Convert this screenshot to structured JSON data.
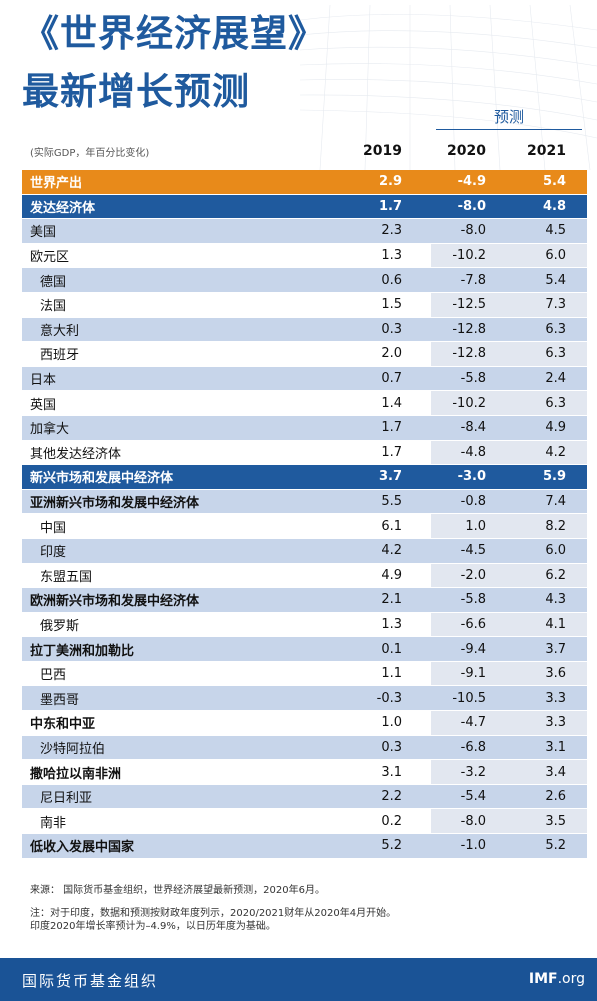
{
  "header": {
    "title_line1": "《世界经济展望》",
    "title_line2": "最新增长预测",
    "note": "(实际GDP，年百分比变化)",
    "forecast_label": "预测"
  },
  "chart_data": {
    "type": "table",
    "columns": [
      "2019",
      "2020",
      "2021"
    ],
    "rows": [
      {
        "label": "世界产出",
        "values": [
          "2.9",
          "-4.9",
          "5.4"
        ],
        "style": "world"
      },
      {
        "label": "发达经济体",
        "values": [
          "1.7",
          "-8.0",
          "4.8"
        ],
        "style": "group"
      },
      {
        "label": "美国",
        "values": [
          "2.3",
          "-8.0",
          "4.5"
        ],
        "style": "shade"
      },
      {
        "label": "欧元区",
        "values": [
          "1.3",
          "-10.2",
          "6.0"
        ],
        "style": "plain"
      },
      {
        "label": "德国",
        "values": [
          "0.6",
          "-7.8",
          "5.4"
        ],
        "style": "shade-indent"
      },
      {
        "label": "法国",
        "values": [
          "1.5",
          "-12.5",
          "7.3"
        ],
        "style": "plain-indent"
      },
      {
        "label": "意大利",
        "values": [
          "0.3",
          "-12.8",
          "6.3"
        ],
        "style": "shade-indent"
      },
      {
        "label": "西班牙",
        "values": [
          "2.0",
          "-12.8",
          "6.3"
        ],
        "style": "plain-indent"
      },
      {
        "label": "日本",
        "values": [
          "0.7",
          "-5.8",
          "2.4"
        ],
        "style": "shade"
      },
      {
        "label": "英国",
        "values": [
          "1.4",
          "-10.2",
          "6.3"
        ],
        "style": "plain"
      },
      {
        "label": "加拿大",
        "values": [
          "1.7",
          "-8.4",
          "4.9"
        ],
        "style": "shade"
      },
      {
        "label": "其他发达经济体",
        "values": [
          "1.7",
          "-4.8",
          "4.2"
        ],
        "style": "plain"
      },
      {
        "label": "新兴市场和发展中经济体",
        "values": [
          "3.7",
          "-3.0",
          "5.9"
        ],
        "style": "group"
      },
      {
        "label": "亚洲新兴市场和发展中经济体",
        "values": [
          "5.5",
          "-0.8",
          "7.4"
        ],
        "style": "shade-bold"
      },
      {
        "label": "中国",
        "values": [
          "6.1",
          "1.0",
          "8.2"
        ],
        "style": "plain-indent"
      },
      {
        "label": "印度",
        "values": [
          "4.2",
          "-4.5",
          "6.0"
        ],
        "style": "shade-indent"
      },
      {
        "label": "东盟五国",
        "values": [
          "4.9",
          "-2.0",
          "6.2"
        ],
        "style": "plain-indent"
      },
      {
        "label": "欧洲新兴市场和发展中经济体",
        "values": [
          "2.1",
          "-5.8",
          "4.3"
        ],
        "style": "shade-bold"
      },
      {
        "label": "俄罗斯",
        "values": [
          "1.3",
          "-6.6",
          "4.1"
        ],
        "style": "plain-indent"
      },
      {
        "label": "拉丁美洲和加勒比",
        "values": [
          "0.1",
          "-9.4",
          "3.7"
        ],
        "style": "shade-bold"
      },
      {
        "label": "巴西",
        "values": [
          "1.1",
          "-9.1",
          "3.6"
        ],
        "style": "plain-indent"
      },
      {
        "label": "墨西哥",
        "values": [
          "-0.3",
          "-10.5",
          "3.3"
        ],
        "style": "shade-indent"
      },
      {
        "label": "中东和中亚",
        "values": [
          "1.0",
          "-4.7",
          "3.3"
        ],
        "style": "plain-bold"
      },
      {
        "label": "沙特阿拉伯",
        "values": [
          "0.3",
          "-6.8",
          "3.1"
        ],
        "style": "shade-indent"
      },
      {
        "label": "撒哈拉以南非洲",
        "values": [
          "3.1",
          "-3.2",
          "3.4"
        ],
        "style": "plain-bold"
      },
      {
        "label": "尼日利亚",
        "values": [
          "2.2",
          "-5.4",
          "2.6"
        ],
        "style": "shade-indent"
      },
      {
        "label": "南非",
        "values": [
          "0.2",
          "-8.0",
          "3.5"
        ],
        "style": "plain-indent"
      },
      {
        "label": "低收入发展中国家",
        "values": [
          "5.2",
          "-1.0",
          "5.2"
        ],
        "style": "shade-bold"
      }
    ]
  },
  "footer": {
    "source": "来源：  国际货币基金组织，世界经济展望最新预测，2020年6月。",
    "note1": "注：对于印度，数据和预测按财政年度列示，2020/2021财年从2020年4月开始。",
    "note2": "印度2020年增长率预计为–4.9%，以日历年度为基础。"
  },
  "bottom_bar": {
    "org_name": "国际货币基金组织",
    "imf_bold": "IMF",
    "imf_rest": ".org"
  },
  "colors": {
    "title_blue": "#1f5a9e",
    "world_orange": "#e88a1a",
    "group_blue": "#1f5a9e",
    "row_shade": "#c7d5ea",
    "forecast_bg": "#e2e7f0"
  }
}
